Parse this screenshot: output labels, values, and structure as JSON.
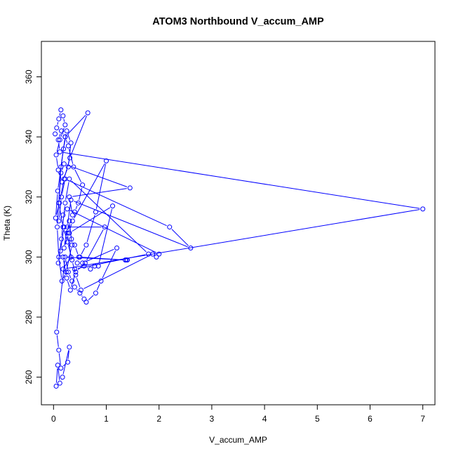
{
  "chart_data": {
    "type": "line",
    "title": "ATOM3 Northbound V_accum_AMP",
    "xlabel": "V_accum_AMP",
    "ylabel": "Theta (K)",
    "xlim": [
      -0.23,
      7.23
    ],
    "ylim": [
      250.8,
      371.8
    ],
    "xticks": [
      0,
      1,
      2,
      3,
      4,
      5,
      6,
      7
    ],
    "yticks": [
      260,
      280,
      300,
      320,
      340,
      360
    ],
    "color": "#0000ff",
    "markers": "open-circle",
    "series": [
      {
        "x": [
          0.03,
          0.06,
          0.1,
          0.14,
          0.18,
          0.22,
          0.12,
          0.05,
          0.09,
          0.16,
          0.28,
          0.33,
          0.25,
          0.19,
          0.08,
          0.04,
          0.11,
          0.2,
          0.31,
          0.65,
          0.22,
          0.14,
          0.07,
          0.1,
          0.16,
          0.24,
          0.35,
          0.3,
          0.26,
          0.33,
          0.18,
          7.0,
          0.12,
          0.09,
          0.15,
          0.22,
          0.28,
          0.38,
          0.55,
          0.47,
          0.4,
          0.36,
          0.3,
          1.45,
          0.2,
          0.14,
          0.1,
          0.18,
          0.27,
          0.35,
          0.42,
          0.52,
          1.88,
          1.95,
          2.0,
          0.26,
          0.18,
          0.1,
          0.15,
          0.22,
          2.2,
          2.6,
          0.33,
          0.26,
          0.2,
          0.29,
          0.36,
          1.0,
          0.8,
          0.62,
          0.5,
          0.45,
          0.4,
          1.8,
          0.3,
          0.22,
          0.15,
          0.09,
          0.13,
          0.2,
          0.97,
          0.6,
          0.42,
          0.32,
          0.25,
          0.18,
          1.38,
          1.4,
          1.36,
          0.48,
          0.4,
          0.34,
          0.3,
          1.12,
          0.85,
          0.78,
          0.7,
          0.58,
          0.55,
          1.2,
          0.9,
          0.8,
          0.62,
          0.58,
          0.5,
          0.4,
          0.35,
          0.28,
          0.22,
          0.06,
          0.1,
          0.14,
          0.27,
          0.3,
          0.17,
          0.12,
          0.08,
          0.05
        ],
        "y": [
          341,
          343,
          346,
          349,
          347,
          344,
          339,
          334,
          329,
          325,
          330,
          338,
          342,
          336,
          322,
          313,
          318,
          326,
          333,
          348,
          340,
          330,
          310,
          300,
          292,
          295,
          304,
          312,
          308,
          300,
          296,
          316,
          335,
          339,
          342,
          340,
          337,
          330,
          324,
          318,
          315,
          314,
          320,
          323,
          331,
          328,
          318,
          310,
          305,
          299,
          294,
          289,
          301,
          300,
          301,
          316,
          314,
          312,
          320,
          326,
          310,
          303,
          319,
          310,
          303,
          308,
          312,
          332,
          315,
          304,
          300,
          298,
          296,
          301,
          326,
          318,
          306,
          298,
          302,
          310,
          310,
          298,
          295,
          289,
          293,
          300,
          299,
          299,
          299,
          300,
          304,
          306,
          308,
          317,
          297,
          297,
          296,
          297,
          298,
          303,
          292,
          288,
          285,
          286,
          288,
          290,
          292,
          295,
          300,
          275,
          269,
          263,
          265,
          270,
          260,
          258,
          264,
          257
        ]
      }
    ]
  }
}
